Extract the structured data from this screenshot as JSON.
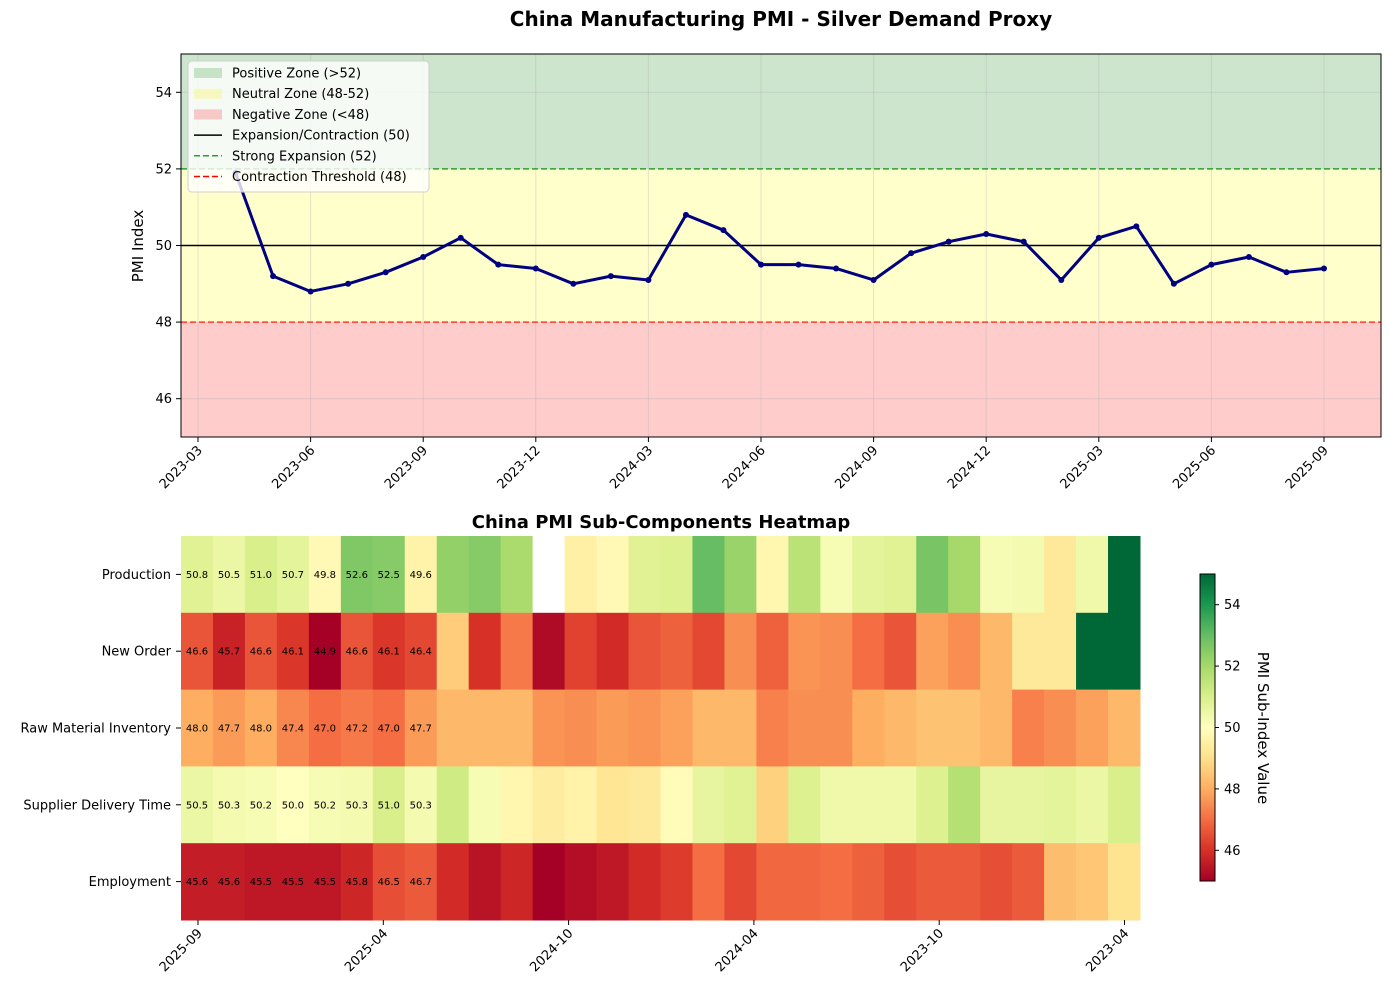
{
  "chart_data": [
    {
      "type": "line",
      "title": "China Manufacturing PMI - Silver Demand Proxy",
      "xlabel": "",
      "ylabel": "PMI Index",
      "ylim": [
        45,
        55
      ],
      "yticks": [
        46,
        48,
        50,
        52,
        54
      ],
      "xtick_labels": [
        "2023-03",
        "2023-06",
        "2023-09",
        "2023-12",
        "2024-03",
        "2024-06",
        "2024-09",
        "2024-12",
        "2025-03",
        "2025-06",
        "2025-09"
      ],
      "grid": true,
      "legend_position": "upper-left",
      "legend": [
        {
          "label": "Positive Zone (>52)",
          "kind": "patch",
          "color": "#a6d3a6"
        },
        {
          "label": "Neutral Zone (48-52)",
          "kind": "patch",
          "color": "#f7f79a"
        },
        {
          "label": "Negative Zone (<48)",
          "kind": "patch",
          "color": "#f7a6a6"
        },
        {
          "label": "Expansion/Contraction (50)",
          "kind": "line",
          "color": "#000000",
          "dash": "solid"
        },
        {
          "label": "Strong Expansion (52)",
          "kind": "line",
          "color": "#2ca02c",
          "dash": "dashed"
        },
        {
          "label": "Contraction Threshold (48)",
          "kind": "line",
          "color": "#ff0000",
          "dash": "dashed"
        }
      ],
      "zones": [
        {
          "from": 52,
          "to": 55,
          "color": "#cce5cc"
        },
        {
          "from": 48,
          "to": 52,
          "color": "#ffffcc"
        },
        {
          "from": 45,
          "to": 48,
          "color": "#ffcccc"
        }
      ],
      "reference_lines": [
        {
          "y": 50,
          "color": "#000000",
          "dash": "solid"
        },
        {
          "y": 52,
          "color": "#2ca02c",
          "dash": "dashed"
        },
        {
          "y": 48,
          "color": "#ff3b30",
          "dash": "dashed"
        }
      ],
      "series": [
        {
          "color": "#000080",
          "x": [
            "2023-04",
            "2023-05",
            "2023-06",
            "2023-07",
            "2023-08",
            "2023-09",
            "2023-10",
            "2023-11",
            "2023-12",
            "2024-01",
            "2024-02",
            "2024-03",
            "2024-04",
            "2024-05",
            "2024-06",
            "2024-07",
            "2024-08",
            "2024-09",
            "2024-10",
            "2024-11",
            "2024-12",
            "2025-01",
            "2025-02",
            "2025-03",
            "2025-04",
            "2025-05",
            "2025-06",
            "2025-07",
            "2025-08",
            "2025-09"
          ],
          "values": [
            51.9,
            49.2,
            48.8,
            49.0,
            49.3,
            49.7,
            50.2,
            49.5,
            49.4,
            49.0,
            49.2,
            49.1,
            50.8,
            50.4,
            49.5,
            49.5,
            49.4,
            49.1,
            49.8,
            50.1,
            50.3,
            50.1,
            49.1,
            50.2,
            50.5,
            49.0,
            49.5,
            49.7,
            49.3,
            49.4
          ]
        }
      ]
    },
    {
      "type": "heatmap",
      "title": "China PMI Sub-Components Heatmap",
      "xlabel": "",
      "ylabel": "",
      "rows": [
        "Production",
        "New Order",
        "Raw Material Inventory",
        "Supplier Delivery Time",
        "Employment"
      ],
      "xtick_labels": [
        "2025-09",
        "2025-04",
        "2024-10",
        "2024-04",
        "2023-10",
        "2023-04"
      ],
      "colorbar": {
        "label": "PMI Sub-Index Value",
        "min": 45,
        "max": 55,
        "ticks": [
          46,
          48,
          50,
          52,
          54
        ],
        "colormap": "RdYlGn"
      },
      "annotated_columns": 8,
      "values": [
        [
          50.8,
          50.5,
          51.0,
          50.7,
          49.8,
          52.6,
          52.5,
          49.6,
          52.3,
          52.5,
          51.9,
          null,
          49.5,
          49.8,
          50.8,
          50.9,
          53.0,
          52.2,
          49.7,
          51.6,
          50.2,
          50.7,
          50.8,
          52.7,
          52.0,
          50.2,
          50.3,
          49.3,
          50.4,
          55.0
        ],
        [
          46.6,
          45.7,
          46.6,
          46.1,
          44.9,
          46.6,
          46.1,
          46.4,
          48.6,
          46.0,
          47.2,
          45.2,
          46.3,
          45.9,
          46.6,
          46.8,
          46.4,
          47.5,
          46.8,
          47.6,
          47.5,
          47.0,
          46.6,
          47.8,
          47.5,
          48.2,
          49.3,
          49.3,
          55.0,
          55.0
        ],
        [
          48.0,
          47.7,
          48.0,
          47.4,
          47.0,
          47.2,
          47.0,
          47.7,
          48.2,
          48.2,
          48.2,
          47.6,
          47.5,
          47.7,
          47.6,
          47.8,
          48.2,
          48.2,
          47.3,
          47.5,
          47.5,
          48.0,
          48.2,
          48.4,
          48.4,
          48.2,
          47.3,
          47.5,
          47.8,
          48.2
        ],
        [
          50.5,
          50.3,
          50.2,
          50.0,
          50.2,
          50.3,
          51.0,
          50.3,
          51.2,
          50.2,
          49.7,
          49.4,
          49.6,
          49.2,
          49.3,
          49.9,
          50.6,
          50.8,
          48.7,
          50.9,
          50.4,
          50.4,
          50.4,
          50.9,
          51.7,
          50.6,
          50.6,
          50.7,
          50.5,
          51.0
        ],
        [
          45.6,
          45.6,
          45.5,
          45.5,
          45.5,
          45.8,
          46.5,
          46.7,
          45.9,
          45.4,
          45.8,
          45.0,
          45.3,
          45.5,
          45.9,
          46.2,
          47.0,
          46.4,
          46.9,
          46.9,
          47.0,
          46.8,
          46.5,
          46.7,
          46.7,
          46.5,
          46.7,
          48.3,
          48.5,
          49.1
        ]
      ]
    }
  ]
}
